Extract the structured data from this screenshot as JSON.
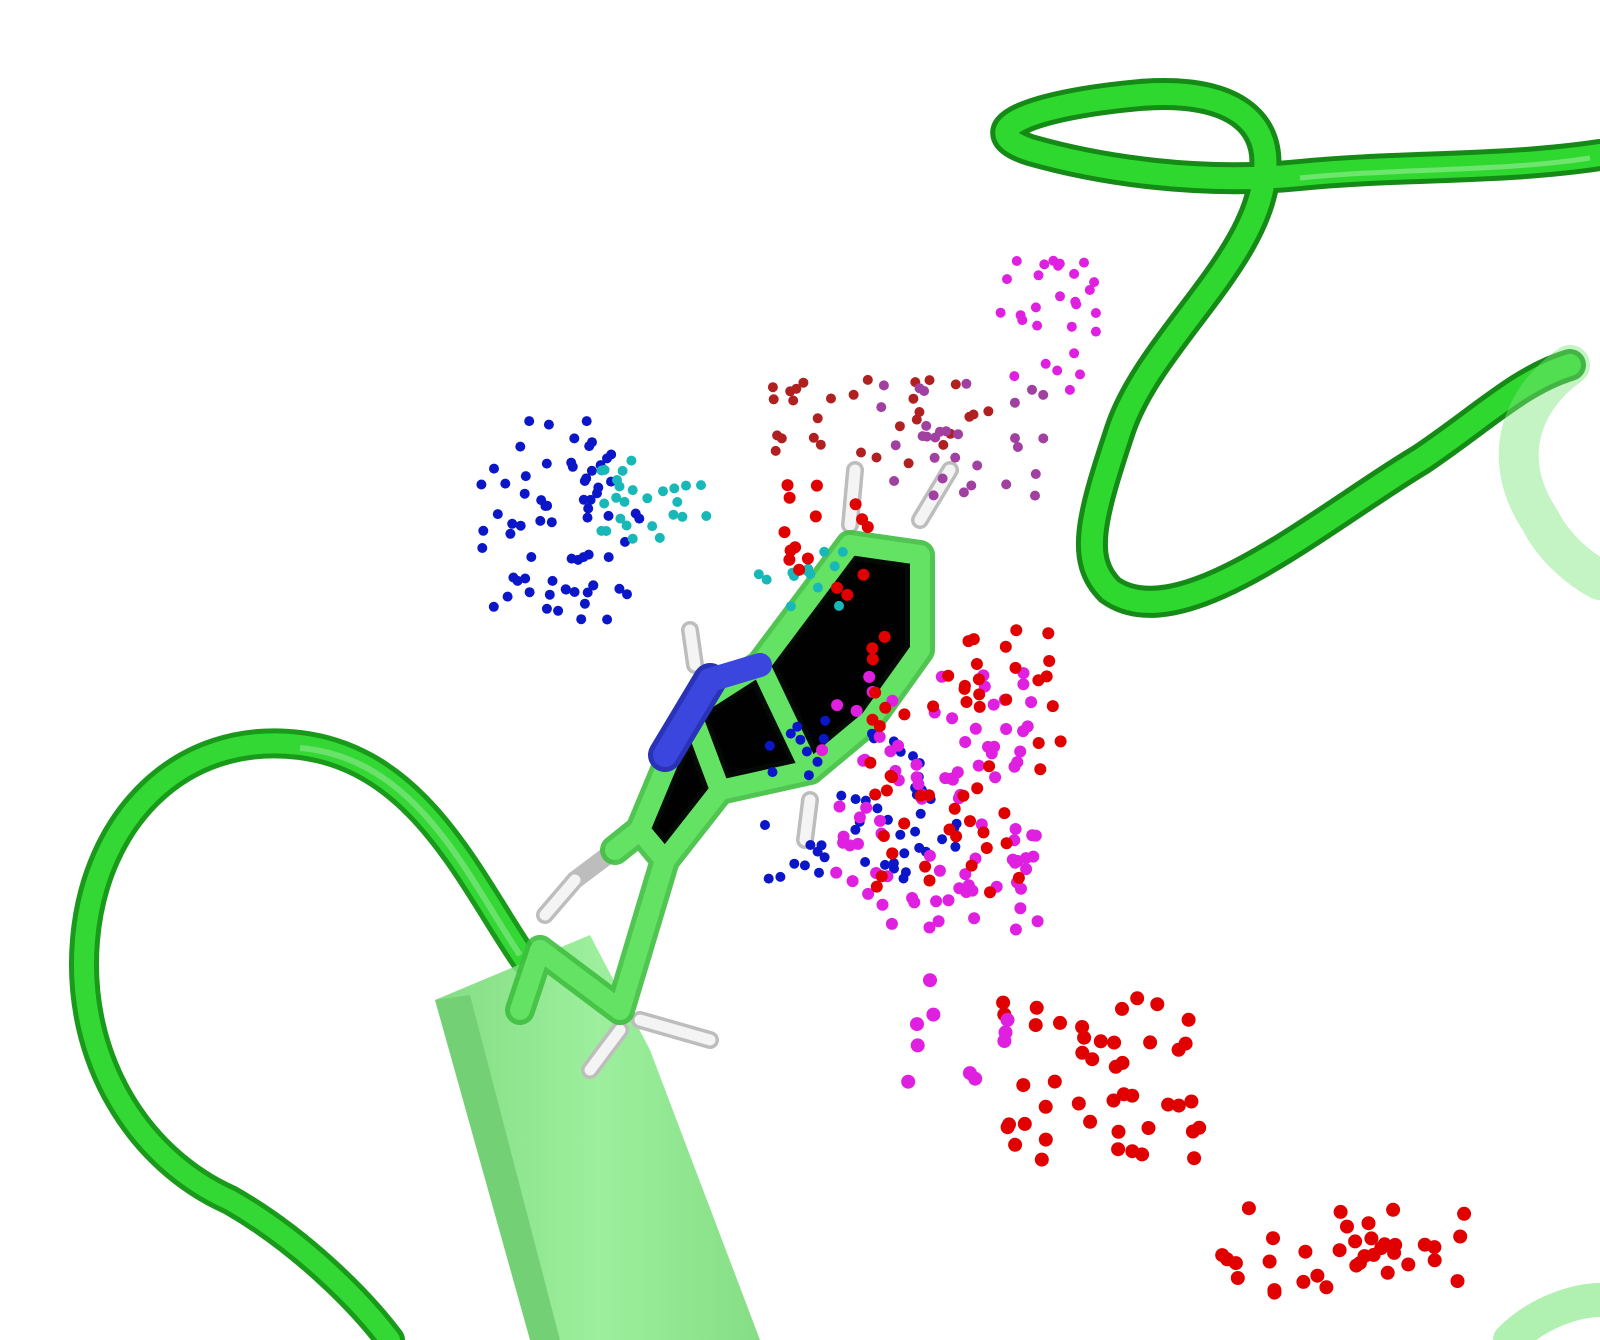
{
  "colors": {
    "background": "#ffffff",
    "backbone": "#2fd82f",
    "backbone_dark": "#1a9a1a",
    "residue_carbon": "#5ee05e",
    "strand": "#7ce67c",
    "nitrogen": "#3a46dd",
    "hydrogen": "#f2f2f2",
    "dot_blue": "#0a16c8",
    "dot_cyan": "#18b8b8",
    "dot_red": "#e00000",
    "dot_darkred": "#b02020",
    "dot_magenta": "#e020e0",
    "dot_purple": "#a040a0"
  }
}
